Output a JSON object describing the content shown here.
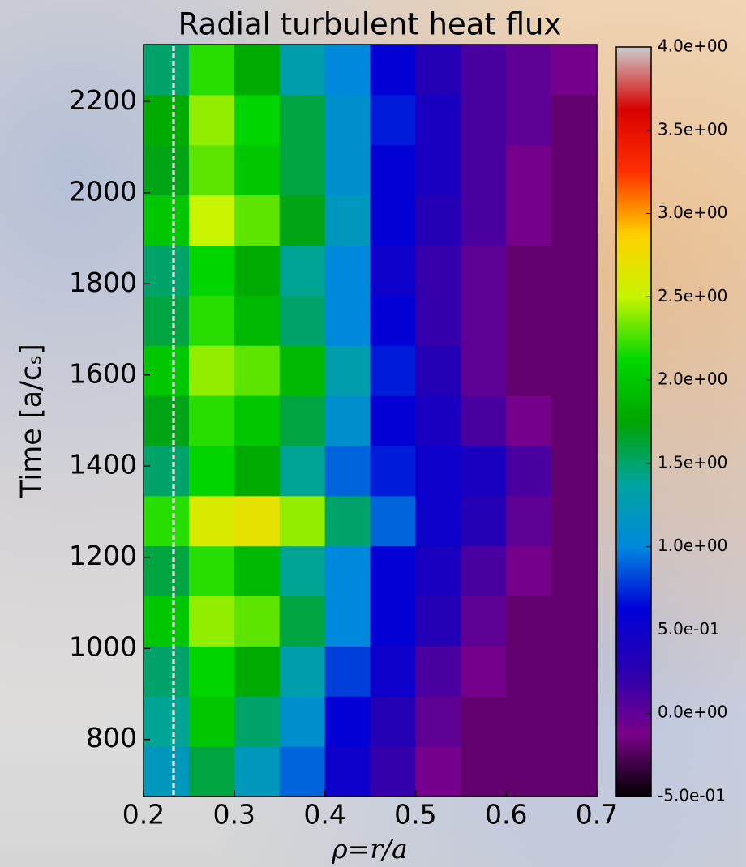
{
  "chart_data": {
    "type": "heatmap",
    "title": "Radial turbulent heat flux",
    "x_label": "ρ=r/a",
    "y_label": "Time [a/cₛ]",
    "xlim": [
      0.2,
      0.7
    ],
    "xticks": [
      0.2,
      0.3,
      0.4,
      0.5,
      0.6,
      0.7
    ],
    "ylim": [
      675,
      2325
    ],
    "yticks": [
      800,
      1000,
      1200,
      1400,
      1600,
      1800,
      2000,
      2200
    ],
    "xbins": [
      0.2,
      0.25,
      0.3,
      0.35,
      0.4,
      0.45,
      0.5,
      0.55,
      0.6,
      0.65,
      0.7
    ],
    "ybins": [
      675,
      785,
      895,
      1005,
      1115,
      1225,
      1335,
      1445,
      1555,
      1665,
      1775,
      1885,
      1995,
      2105,
      2215,
      2325
    ],
    "z": [
      [
        1.2,
        1.6,
        1.2,
        0.9,
        0.5,
        0.2,
        -0.1,
        -0.2,
        -0.2,
        -0.2
      ],
      [
        1.4,
        2.0,
        1.5,
        1.1,
        0.6,
        0.3,
        0.0,
        -0.2,
        -0.2,
        -0.2
      ],
      [
        1.5,
        2.1,
        1.8,
        1.3,
        0.8,
        0.5,
        0.1,
        -0.1,
        -0.2,
        -0.2
      ],
      [
        2.0,
        2.4,
        2.3,
        1.6,
        1.0,
        0.6,
        0.3,
        0.0,
        -0.2,
        -0.2
      ],
      [
        1.6,
        2.2,
        1.9,
        1.4,
        1.0,
        0.6,
        0.4,
        0.1,
        -0.1,
        -0.2
      ],
      [
        2.2,
        2.6,
        2.7,
        2.4,
        1.5,
        0.9,
        0.5,
        0.3,
        0.0,
        -0.2
      ],
      [
        1.5,
        2.1,
        1.8,
        1.4,
        0.9,
        0.7,
        0.5,
        0.4,
        0.1,
        -0.2
      ],
      [
        1.7,
        2.2,
        2.0,
        1.6,
        1.1,
        0.6,
        0.4,
        0.1,
        -0.1,
        -0.2
      ],
      [
        2.0,
        2.4,
        2.3,
        1.9,
        1.3,
        0.7,
        0.3,
        0.0,
        -0.2,
        -0.2
      ],
      [
        1.6,
        2.2,
        1.9,
        1.5,
        1.0,
        0.6,
        0.2,
        0.0,
        -0.2,
        -0.2
      ],
      [
        1.5,
        2.1,
        1.8,
        1.4,
        1.0,
        0.5,
        0.2,
        0.0,
        -0.2,
        -0.2
      ],
      [
        2.0,
        2.5,
        2.3,
        1.7,
        1.2,
        0.6,
        0.3,
        0.1,
        -0.1,
        -0.2
      ],
      [
        1.7,
        2.3,
        2.0,
        1.6,
        1.1,
        0.6,
        0.4,
        0.1,
        -0.1,
        -0.2
      ],
      [
        1.8,
        2.4,
        2.1,
        1.6,
        1.1,
        0.7,
        0.4,
        0.1,
        0.0,
        -0.2
      ],
      [
        1.5,
        2.2,
        1.8,
        1.3,
        1.0,
        0.6,
        0.3,
        0.1,
        0.0,
        -0.1
      ]
    ],
    "zlim": [
      -0.5,
      4.0
    ],
    "zticks": [
      {
        "value": -0.5,
        "label": "-5.0e-01"
      },
      {
        "value": 0.0,
        "label": "0.0e+00"
      },
      {
        "value": 0.5,
        "label": "5.0e-01"
      },
      {
        "value": 1.0,
        "label": "1.0e+00"
      },
      {
        "value": 1.5,
        "label": "1.5e+00"
      },
      {
        "value": 2.0,
        "label": "2.0e+00"
      },
      {
        "value": 2.5,
        "label": "2.5e+00"
      },
      {
        "value": 3.0,
        "label": "3.0e+00"
      },
      {
        "value": 3.5,
        "label": "3.5e+00"
      },
      {
        "value": 4.0,
        "label": "4.0e+00"
      }
    ],
    "colorscale": [
      "#000000",
      "#7a0088",
      "#2a00b0",
      "#0000d8",
      "#0088dd",
      "#00a4a0",
      "#00a400",
      "#00d800",
      "#c8f400",
      "#ffd000",
      "#ff3000",
      "#d80000",
      "#cccccc"
    ]
  }
}
